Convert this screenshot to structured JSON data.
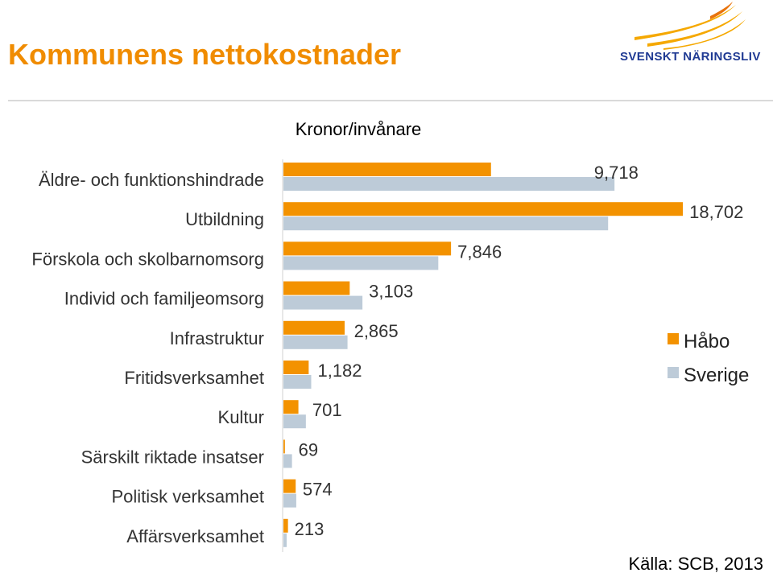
{
  "header": {
    "title": "Kommunens nettokostnader",
    "logo_text": "SVENSKT NÄRINGSLIV"
  },
  "colors": {
    "title": "#f08c00",
    "rule": "#d9d9d9",
    "logo_text": "#1f3a93",
    "logo_swoosh": "#f5a800",
    "logo_swoosh_dark": "#e8730c"
  },
  "source": "Källa: SCB, 2013",
  "chart_data": {
    "type": "bar",
    "orientation": "horizontal",
    "title": "",
    "subtitle": "Kronor/invånare",
    "categories": [
      "Äldre- och funktionshindrade",
      "Utbildning",
      "Förskola och skolbarnomsorg",
      "Individ och familjeomsorg",
      "Infrastruktur",
      "Fritidsverksamhet",
      "Kultur",
      "Särskilt riktade insatser",
      "Politisk verksamhet",
      "Affärsverksamhet"
    ],
    "series": [
      {
        "name": "Håbo",
        "color": "#f39200",
        "values": [
          9718,
          18702,
          7846,
          3103,
          2865,
          1182,
          701,
          69,
          574,
          213
        ],
        "labels": [
          "9,718",
          "18,702",
          "7,846",
          "3,103",
          "2,865",
          "1,182",
          "701",
          "69",
          "574",
          "213"
        ]
      },
      {
        "name": "Sverige",
        "color": "#bdcbd8",
        "values": [
          15500,
          15200,
          7250,
          3700,
          3000,
          1300,
          1050,
          400,
          600,
          150
        ]
      }
    ],
    "xlim": [
      0,
      19000
    ],
    "grid": false,
    "legend": "right"
  }
}
